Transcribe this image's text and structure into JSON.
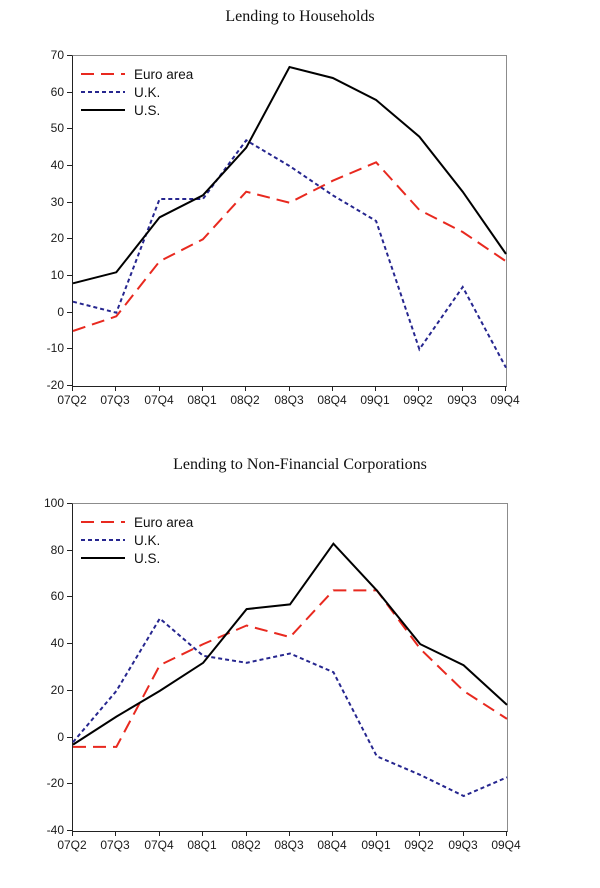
{
  "chart_data": [
    {
      "type": "line",
      "title": "Lending to Households",
      "categories": [
        "07Q2",
        "07Q3",
        "07Q4",
        "08Q1",
        "08Q2",
        "08Q3",
        "08Q4",
        "09Q1",
        "09Q2",
        "09Q3",
        "09Q4"
      ],
      "series": [
        {
          "name": "Euro area",
          "color": "#e8291f",
          "dash": "long-dash",
          "values": [
            -5,
            -1,
            14,
            20,
            33,
            30,
            36,
            41,
            28,
            22,
            14
          ]
        },
        {
          "name": "U.K.",
          "color": "#26268f",
          "dash": "short-dash",
          "values": [
            3,
            0,
            31,
            31,
            47,
            40,
            32,
            25,
            -10,
            7,
            -15
          ]
        },
        {
          "name": "U.S.",
          "color": "#000000",
          "dash": "solid",
          "values": [
            8,
            11,
            26,
            32,
            45,
            67,
            64,
            58,
            48,
            33,
            16
          ]
        }
      ],
      "xlabel": "",
      "ylabel": "",
      "ylim": [
        -20,
        70
      ],
      "ytick_step": 10,
      "yticks": [
        70,
        60,
        50,
        40,
        30,
        20,
        10,
        0,
        -10,
        -20
      ],
      "legend_position": "top-left",
      "grid": false
    },
    {
      "type": "line",
      "title": "Lending to Non-Financial Corporations",
      "categories": [
        "07Q2",
        "07Q3",
        "07Q4",
        "08Q1",
        "08Q2",
        "08Q3",
        "08Q4",
        "09Q1",
        "09Q2",
        "09Q3",
        "09Q4"
      ],
      "series": [
        {
          "name": "Euro area",
          "color": "#e8291f",
          "dash": "long-dash",
          "values": [
            -4,
            -4,
            31,
            40,
            48,
            43,
            63,
            63,
            38,
            20,
            8
          ]
        },
        {
          "name": "U.K.",
          "color": "#26268f",
          "dash": "short-dash",
          "values": [
            -2,
            20,
            51,
            35,
            32,
            36,
            28,
            -8,
            -16,
            -25,
            -17
          ]
        },
        {
          "name": "U.S.",
          "color": "#000000",
          "dash": "solid",
          "values": [
            -3,
            9,
            20,
            32,
            55,
            57,
            83,
            63,
            40,
            31,
            14
          ]
        }
      ],
      "xlabel": "",
      "ylabel": "",
      "ylim": [
        -40,
        100
      ],
      "ytick_step": 20,
      "yticks": [
        100,
        80,
        60,
        40,
        20,
        0,
        -20,
        -40
      ],
      "legend_position": "top-left",
      "grid": false
    }
  ]
}
